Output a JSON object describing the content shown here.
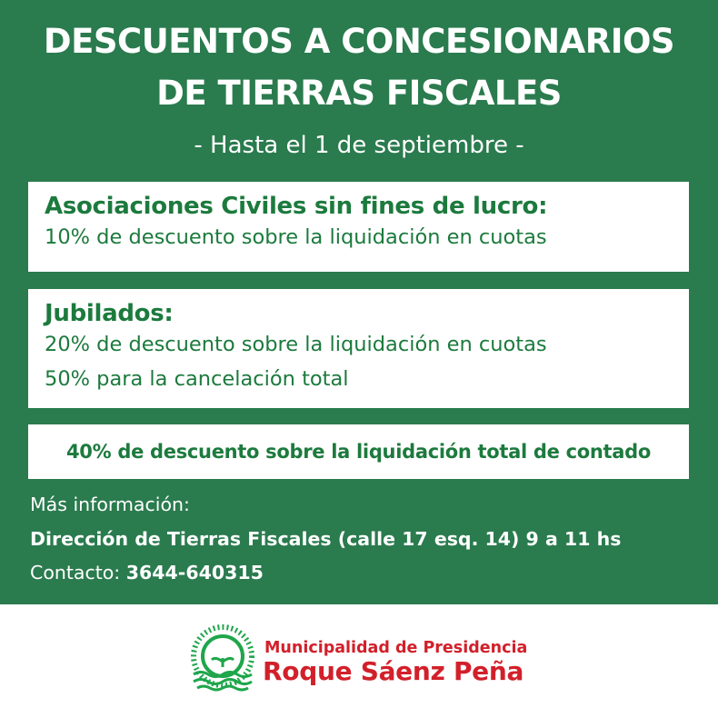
{
  "header": {
    "title_line1": "DESCUENTOS A CONCESIONARIOS",
    "title_line2": "DE TIERRAS FISCALES",
    "subtitle": "- Hasta el 1 de septiembre -"
  },
  "boxes": [
    {
      "heading": "Asociaciones Civiles sin fines de lucro:",
      "lines": [
        "10% de descuento sobre la liquidación en cuotas"
      ]
    },
    {
      "heading": "Jubilados:",
      "lines": [
        "20% de descuento sobre la liquidación en cuotas",
        "50% para la cancelación total"
      ]
    },
    {
      "heading": "40% de descuento sobre la liquidación total de contado"
    }
  ],
  "info": {
    "label": "Más información:",
    "address": "Dirección de Tierras Fiscales (calle 17 esq. 14) 9 a 11 hs",
    "contact_label": "Contacto:",
    "phone": "3644-640315"
  },
  "logo": {
    "line1": "Municipalidad de Presidencia",
    "line2": "Roque Sáenz Peña",
    "icon": "cotton-sun-icon"
  },
  "colors": {
    "background_green": "#2a7b4e",
    "text_green": "#1c7a3d",
    "logo_red": "#d2202a",
    "logo_green": "#1ea64a"
  }
}
